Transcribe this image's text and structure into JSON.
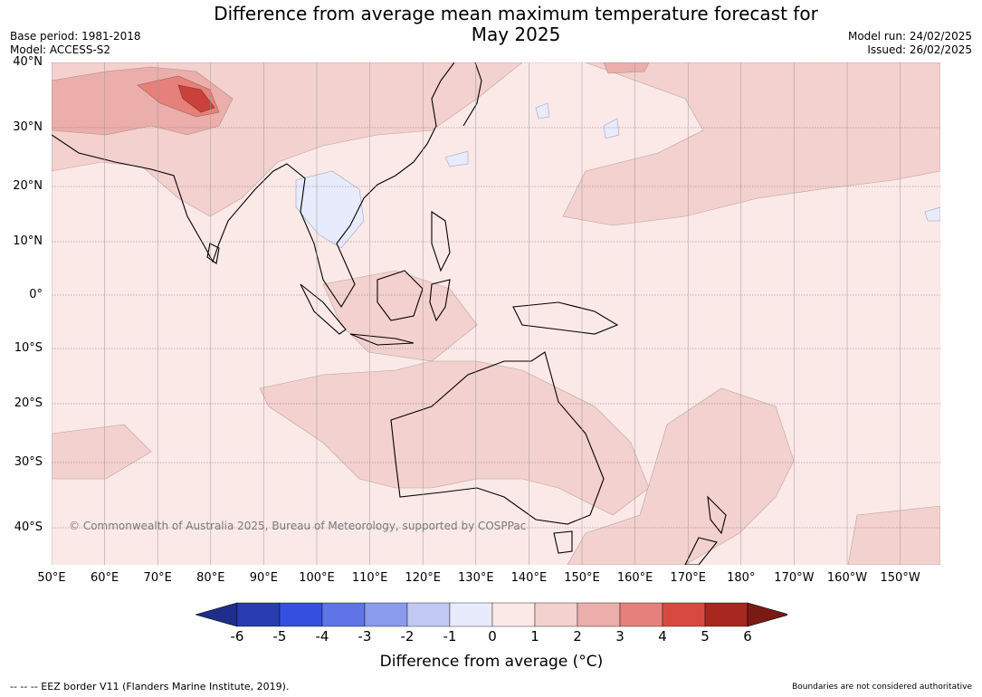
{
  "title_line1": "Difference from average mean maximum temperature forecast for",
  "title_line2": "May 2025",
  "base_period": "Base period: 1981-2018",
  "model": "Model: ACCESS-S2",
  "model_run": "Model run: 24/02/2025",
  "issued": "Issued: 26/02/2025",
  "copyright": "© Commonwealth of Australia 2025, Bureau of Meteorology, supported by COSPPac",
  "footer_left": "--  --  -- EEZ border V11 (Flanders Marine Institute, 2019).",
  "footer_right": "Boundaries are not considered authoritative",
  "lat_labels": [
    "40°N",
    "30°N",
    "20°N",
    "10°N",
    "0°",
    "10°S",
    "20°S",
    "30°S",
    "40°S"
  ],
  "lon_labels": [
    "50°E",
    "60°E",
    "70°E",
    "80°E",
    "90°E",
    "100°E",
    "110°E",
    "120°E",
    "130°E",
    "140°E",
    "150°E",
    "160°E",
    "170°E",
    "180°",
    "170°W",
    "160°W",
    "150°W"
  ],
  "colorbar": {
    "label": "Difference from average (°C)",
    "ticks": [
      "-6",
      "-5",
      "-4",
      "-3",
      "-2",
      "-1",
      "0",
      "1",
      "2",
      "3",
      "4",
      "5",
      "6"
    ],
    "colors": [
      "#1f2e8a",
      "#2a3db0",
      "#3350e0",
      "#5f74e6",
      "#8a9bec",
      "#c0c8f3",
      "#e8ebfb",
      "#fbe9e7",
      "#f3d1ce",
      "#ebaeaa",
      "#e5807a",
      "#d84a40",
      "#a8271f",
      "#7a1a14"
    ]
  }
}
